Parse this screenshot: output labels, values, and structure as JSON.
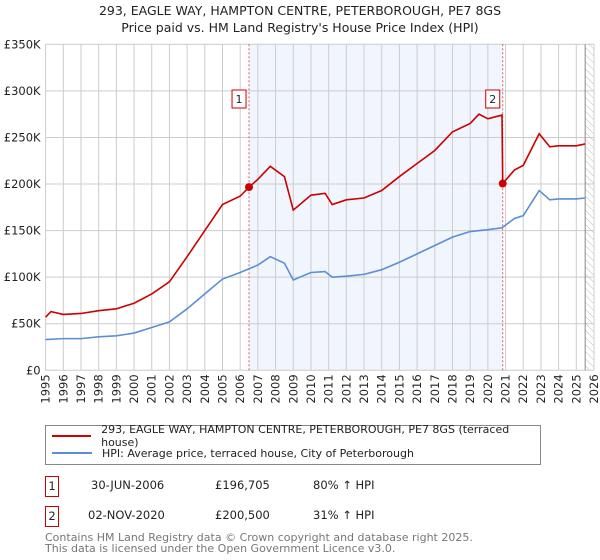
{
  "chart_data": {
    "type": "line",
    "title": "293, EAGLE WAY, HAMPTON CENTRE, PETERBOROUGH, PE7 8GS",
    "subtitle": "Price paid vs. HM Land Registry's House Price Index (HPI)",
    "xlim": [
      1995,
      2026
    ],
    "ylim": [
      0,
      350000
    ],
    "x_ticks": [
      "1995",
      "1996",
      "1997",
      "1998",
      "1999",
      "2000",
      "2001",
      "2002",
      "2003",
      "2004",
      "2005",
      "2006",
      "2007",
      "2008",
      "2009",
      "2010",
      "2011",
      "2012",
      "2013",
      "2014",
      "2015",
      "2016",
      "2017",
      "2018",
      "2019",
      "2020",
      "2021",
      "2022",
      "2023",
      "2024",
      "2025",
      "2026"
    ],
    "y_ticks": [
      {
        "v": 0,
        "label": "£0"
      },
      {
        "v": 50000,
        "label": "£50K"
      },
      {
        "v": 100000,
        "label": "£100K"
      },
      {
        "v": 150000,
        "label": "£150K"
      },
      {
        "v": 200000,
        "label": "£200K"
      },
      {
        "v": 250000,
        "label": "£250K"
      },
      {
        "v": 300000,
        "label": "£300K"
      },
      {
        "v": 350000,
        "label": "£350K"
      }
    ],
    "grid": true,
    "shaded_range": [
      2006.5,
      2020.84
    ],
    "hatched_from": 2025.5,
    "series": [
      {
        "name": "293, EAGLE WAY, HAMPTON CENTRE, PETERBOROUGH, PE7 8GS (terraced house)",
        "color": "#cc0000",
        "x": [
          1995,
          1995.3,
          1996,
          1997,
          1998,
          1999,
          2000,
          2001,
          2002,
          2003,
          2004,
          2005,
          2006,
          2006.5,
          2007,
          2007.7,
          2008.5,
          2009.0,
          2010,
          2010.8,
          2011.2,
          2012,
          2013,
          2014,
          2015,
          2016,
          2017,
          2018,
          2019,
          2019.5,
          2020,
          2020.8,
          2020.84,
          2021.5,
          2022,
          2022.9,
          2023.5,
          2024,
          2025,
          2025.5
        ],
        "y": [
          57000,
          63000,
          60000,
          61000,
          64000,
          66000,
          72000,
          82000,
          95000,
          122000,
          150000,
          178000,
          187000,
          196705,
          205000,
          219000,
          208000,
          172000,
          188000,
          190000,
          178000,
          183000,
          185000,
          193000,
          208000,
          222000,
          236000,
          256000,
          265000,
          275000,
          270000,
          274000,
          200500,
          215000,
          220000,
          254000,
          240000,
          241000,
          241000,
          243000
        ]
      },
      {
        "name": "HPI: Average price, terraced house, City of Peterborough",
        "color": "#5b8fd4",
        "x": [
          1995,
          1996,
          1997,
          1998,
          1999,
          2000,
          2001,
          2002,
          2003,
          2004,
          2005,
          2006,
          2007,
          2007.7,
          2008.5,
          2009.0,
          2010,
          2010.8,
          2011.2,
          2012,
          2013,
          2014,
          2015,
          2016,
          2017,
          2018,
          2019,
          2020,
          2020.8,
          2021.5,
          2022,
          2022.9,
          2023.5,
          2024,
          2025,
          2025.5
        ],
        "y": [
          33000,
          34000,
          34000,
          36000,
          37000,
          40000,
          46000,
          52000,
          66000,
          82000,
          98000,
          105000,
          113000,
          122000,
          115000,
          97000,
          105000,
          106000,
          100000,
          101000,
          103000,
          108000,
          116000,
          125000,
          134000,
          143000,
          149000,
          151000,
          153000,
          163000,
          166000,
          193000,
          183000,
          184000,
          184000,
          185000
        ]
      }
    ],
    "sales": [
      {
        "label": "1",
        "x": 2006.5,
        "y": 196705,
        "date": "30-JUN-2006",
        "price": "£196,705",
        "hpi": "80% ↑ HPI"
      },
      {
        "label": "2",
        "x": 2020.84,
        "y": 200500,
        "date": "02-NOV-2020",
        "price": "£200,500",
        "hpi": "31% ↑ HPI"
      }
    ]
  },
  "footer": {
    "line1": "Contains HM Land Registry data © Crown copyright and database right 2025.",
    "line2": "This data is licensed under the Open Government Licence v3.0."
  }
}
